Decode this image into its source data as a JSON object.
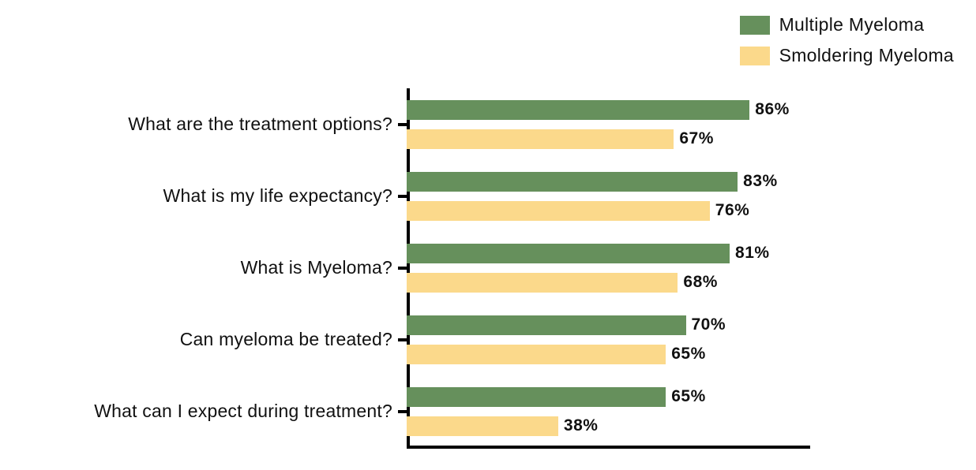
{
  "chart_data": {
    "type": "bar",
    "orientation": "horizontal",
    "title": "",
    "xlabel": "",
    "ylabel": "",
    "xlim": [
      0,
      100
    ],
    "grid": false,
    "legend_position": "top-right",
    "value_suffix": "%",
    "axis_color": "#000000",
    "categories": [
      "What are the treatment options?",
      "What is my life expectancy?",
      "What is Myeloma?",
      "Can myeloma be treated?",
      "What can I expect during treatment?"
    ],
    "series": [
      {
        "name": "Multiple Myeloma",
        "color": "#66905c",
        "values": [
          86,
          83,
          81,
          70,
          65
        ]
      },
      {
        "name": "Smoldering Myeloma",
        "color": "#fbd98b",
        "values": [
          67,
          76,
          68,
          65,
          38
        ]
      }
    ]
  }
}
